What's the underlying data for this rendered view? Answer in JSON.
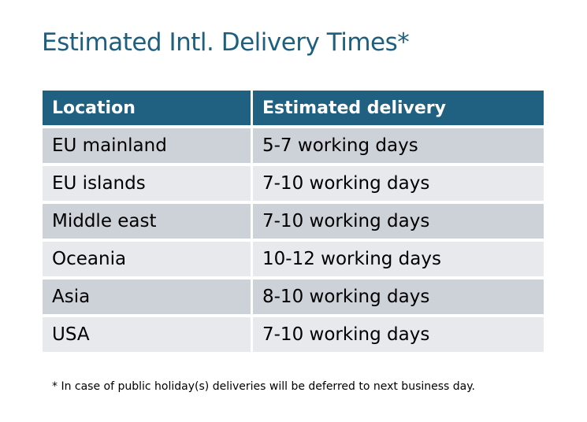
{
  "title": "Estimated Intl. Delivery Times*",
  "table": {
    "headers": [
      "Location",
      "Estimated delivery"
    ],
    "rows": [
      [
        "EU mainland",
        "5-7 working days"
      ],
      [
        "EU islands",
        "7-10 working days"
      ],
      [
        "Middle east",
        "7-10 working days"
      ],
      [
        "Oceania",
        "10-12 working days"
      ],
      [
        "Asia",
        "8-10 working days"
      ],
      [
        "USA",
        "7-10 working days"
      ]
    ]
  },
  "footnote": "* In case of public holiday(s) deliveries will be deferred to next business day.",
  "colors": {
    "header": "#206081",
    "row_dark": "#cdd1d8",
    "row_light": "#e7e9ec",
    "title": "#1f5f7e"
  }
}
